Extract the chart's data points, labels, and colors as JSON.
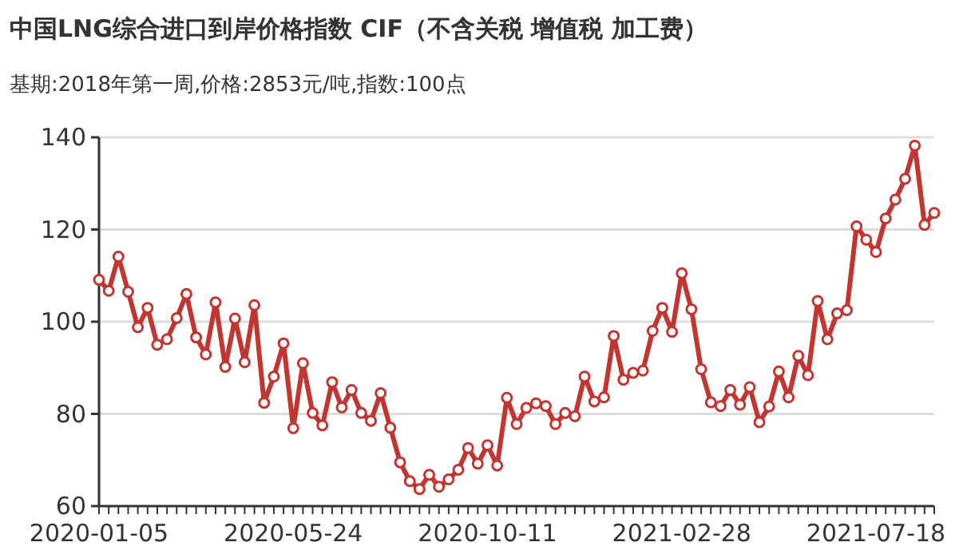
{
  "chart_data": {
    "type": "line",
    "title": "中国LNG综合进口到岸价格指数  CIF（不含关税 增值税 加工费）",
    "subtitle": "基期:2018年第一周,价格:2853元/吨,指数:100点",
    "categories": [
      "2020-01-05",
      null,
      null,
      null,
      null,
      null,
      null,
      null,
      null,
      null,
      null,
      null,
      null,
      null,
      null,
      null,
      null,
      null,
      null,
      null,
      "2020-05-24",
      null,
      null,
      null,
      null,
      null,
      null,
      null,
      null,
      null,
      null,
      null,
      null,
      null,
      null,
      null,
      null,
      null,
      null,
      null,
      "2020-10-11",
      null,
      null,
      null,
      null,
      null,
      null,
      null,
      null,
      null,
      null,
      null,
      null,
      null,
      null,
      null,
      null,
      null,
      null,
      null,
      "2021-02-28",
      null,
      null,
      null,
      null,
      null,
      null,
      null,
      null,
      null,
      null,
      null,
      null,
      null,
      null,
      null,
      null,
      null,
      null,
      null,
      "2021-07-18",
      null,
      null,
      null,
      null,
      null,
      null
    ],
    "series": [
      {
        "color": "#c23531",
        "values": [
          109.1,
          106.7,
          114.1,
          106.5,
          98.8,
          103.0,
          95.0,
          96.2,
          100.8,
          106.0,
          96.6,
          92.9,
          104.2,
          90.2,
          100.7,
          91.2,
          103.6,
          82.4,
          88.1,
          95.3,
          76.9,
          91.0,
          80.2,
          77.5,
          86.9,
          81.4,
          85.2,
          80.2,
          78.5,
          84.5,
          77.0,
          69.5,
          65.4,
          63.7,
          66.8,
          64.2,
          65.8,
          67.9,
          72.6,
          69.2,
          73.2,
          68.8,
          83.5,
          77.8,
          81.3,
          82.3,
          81.7,
          77.8,
          80.2,
          79.5,
          88.1,
          82.7,
          83.6,
          96.9,
          87.4,
          88.9,
          89.4,
          98.0,
          103.0,
          97.8,
          110.5,
          102.7,
          89.7,
          82.5,
          81.7,
          85.2,
          82.0,
          85.8,
          78.2,
          81.6,
          89.2,
          83.6,
          92.6,
          88.4,
          104.5,
          96.2,
          101.8,
          102.5,
          120.7,
          117.8,
          115.1,
          122.4,
          126.5,
          131.0,
          138.2,
          121.0,
          123.6
        ]
      }
    ],
    "ylim": [
      60,
      140
    ],
    "yticks": [
      60,
      80,
      100,
      120,
      140
    ],
    "grid": "y",
    "marker": "circle",
    "line_style": "solid"
  }
}
